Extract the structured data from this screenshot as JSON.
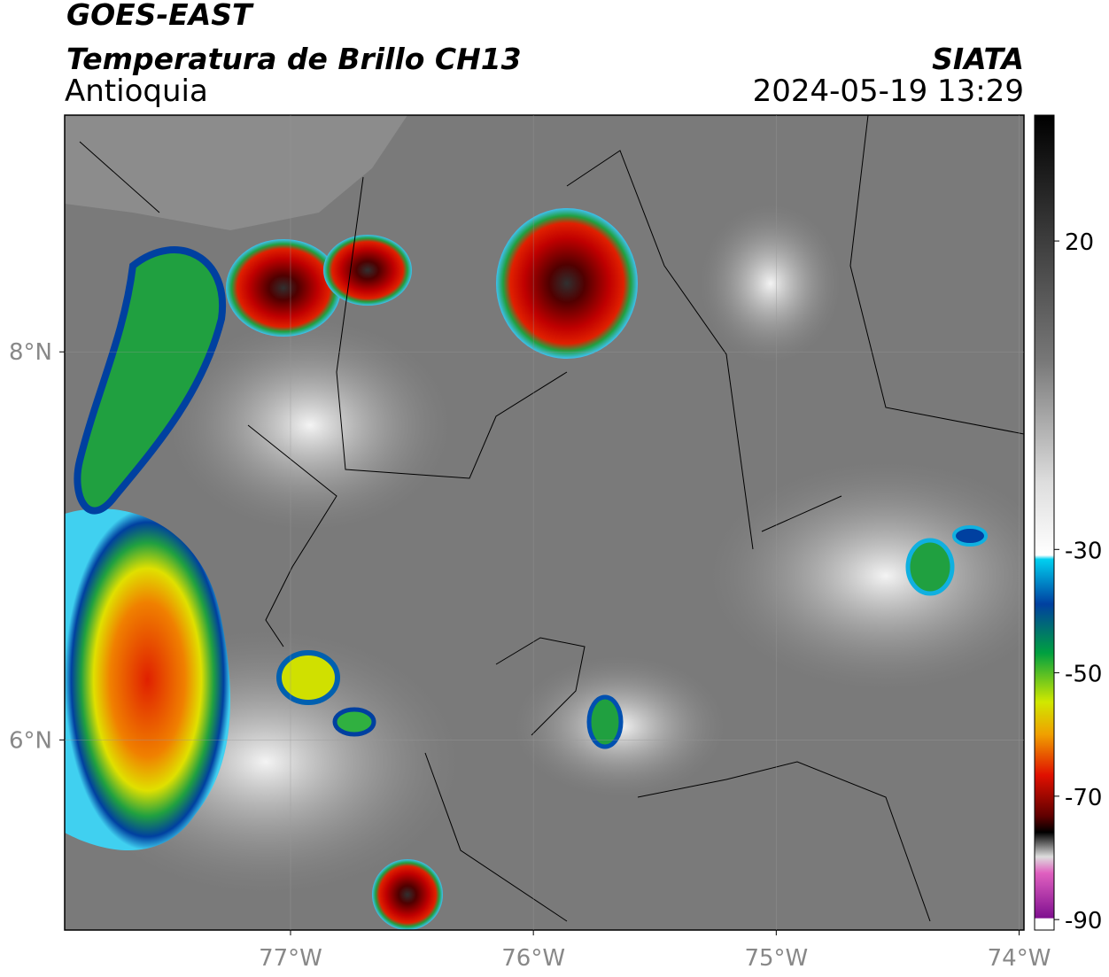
{
  "header": {
    "satellite": "GOES-EAST",
    "product": "Temperatura de Brillo CH13",
    "region": "Antioquia",
    "source": "SIATA",
    "datetime": "2024-05-19 13:29"
  },
  "map": {
    "xlim": [
      -77.93,
      -73.98
    ],
    "ylim": [
      5.02,
      9.22
    ],
    "xticks": [
      {
        "value": -77,
        "label": "77°W"
      },
      {
        "value": -76,
        "label": "76°W"
      },
      {
        "value": -75,
        "label": "75°W"
      },
      {
        "value": -74,
        "label": "74°W"
      }
    ],
    "yticks": [
      {
        "value": 8,
        "label": "8°N"
      },
      {
        "value": 6,
        "label": "6°N"
      }
    ]
  },
  "colorbar": {
    "lim": [
      -91.7,
      40.4
    ],
    "ticks": [
      20,
      -30,
      -50,
      -70,
      -90
    ]
  }
}
